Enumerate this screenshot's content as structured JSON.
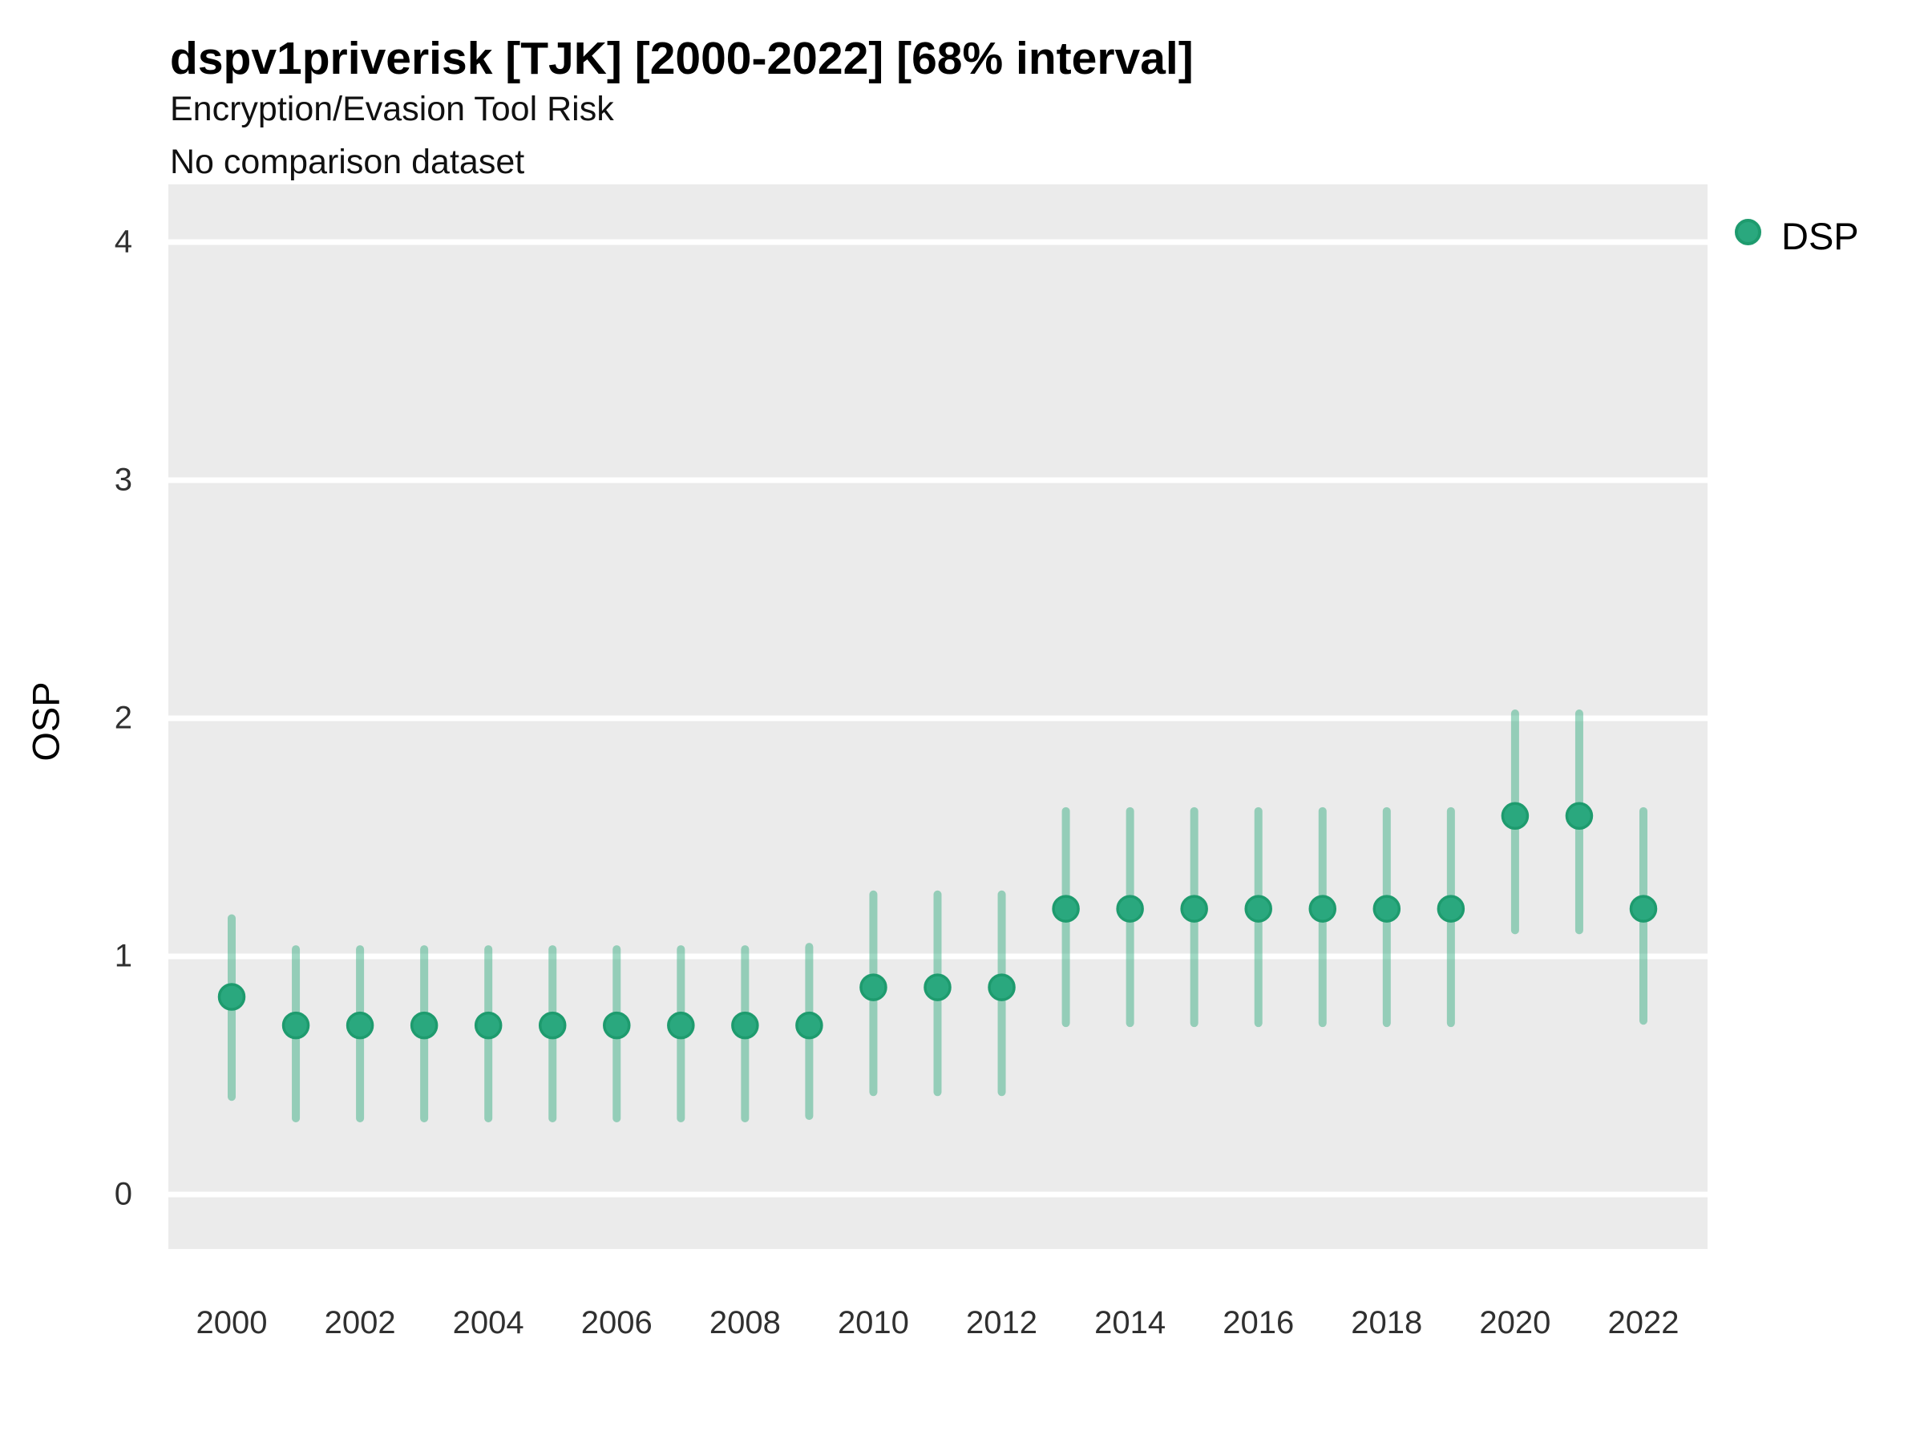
{
  "header": {
    "title": "dspv1priverisk [TJK] [2000-2022] [68% interval]",
    "subtitle": "Encryption/Evasion Tool Risk",
    "subtitle2": "No comparison dataset"
  },
  "legend": {
    "items": [
      {
        "label": "DSP",
        "fill": "#2aa87e",
        "stroke": "#1e9b6e"
      }
    ]
  },
  "colors": {
    "plot_background": "#ebebeb",
    "gridline": "#ffffff",
    "point_fill": "#2aa87e",
    "point_stroke": "#1e9b6e",
    "interval_bar": "rgba(42,168,122,0.45)",
    "tick_text": "#303030"
  },
  "chart_data": {
    "type": "scatter",
    "title": "dspv1priverisk [TJK] [2000-2022] [68% interval]",
    "subtitle": "Encryption/Evasion Tool Risk",
    "note": "No comparison dataset",
    "xlabel": "",
    "ylabel": "OSP",
    "ylim": [
      -0.23,
      4.24
    ],
    "y_ticks": [
      0,
      1,
      2,
      3,
      4
    ],
    "x_tick_labels": [
      "2000",
      "2002",
      "2004",
      "2006",
      "2008",
      "2010",
      "2012",
      "2014",
      "2016",
      "2018",
      "2020",
      "2022"
    ],
    "grid": "major-horizontal",
    "legend_position": "top-right",
    "interval_level": "68%",
    "series": [
      {
        "name": "DSP",
        "points": [
          {
            "year": 2000,
            "value": 0.83,
            "lo": 0.41,
            "hi": 1.16
          },
          {
            "year": 2001,
            "value": 0.71,
            "lo": 0.32,
            "hi": 1.03
          },
          {
            "year": 2002,
            "value": 0.71,
            "lo": 0.32,
            "hi": 1.03
          },
          {
            "year": 2003,
            "value": 0.71,
            "lo": 0.32,
            "hi": 1.03
          },
          {
            "year": 2004,
            "value": 0.71,
            "lo": 0.32,
            "hi": 1.03
          },
          {
            "year": 2005,
            "value": 0.71,
            "lo": 0.32,
            "hi": 1.03
          },
          {
            "year": 2006,
            "value": 0.71,
            "lo": 0.32,
            "hi": 1.03
          },
          {
            "year": 2007,
            "value": 0.71,
            "lo": 0.32,
            "hi": 1.03
          },
          {
            "year": 2008,
            "value": 0.71,
            "lo": 0.32,
            "hi": 1.03
          },
          {
            "year": 2009,
            "value": 0.71,
            "lo": 0.33,
            "hi": 1.04
          },
          {
            "year": 2010,
            "value": 0.87,
            "lo": 0.43,
            "hi": 1.26
          },
          {
            "year": 2011,
            "value": 0.87,
            "lo": 0.43,
            "hi": 1.26
          },
          {
            "year": 2012,
            "value": 0.87,
            "lo": 0.43,
            "hi": 1.26
          },
          {
            "year": 2013,
            "value": 1.2,
            "lo": 0.72,
            "hi": 1.61
          },
          {
            "year": 2014,
            "value": 1.2,
            "lo": 0.72,
            "hi": 1.61
          },
          {
            "year": 2015,
            "value": 1.2,
            "lo": 0.72,
            "hi": 1.61
          },
          {
            "year": 2016,
            "value": 1.2,
            "lo": 0.72,
            "hi": 1.61
          },
          {
            "year": 2017,
            "value": 1.2,
            "lo": 0.72,
            "hi": 1.61
          },
          {
            "year": 2018,
            "value": 1.2,
            "lo": 0.72,
            "hi": 1.61
          },
          {
            "year": 2019,
            "value": 1.2,
            "lo": 0.72,
            "hi": 1.61
          },
          {
            "year": 2020,
            "value": 1.59,
            "lo": 1.11,
            "hi": 2.02
          },
          {
            "year": 2021,
            "value": 1.59,
            "lo": 1.11,
            "hi": 2.02
          },
          {
            "year": 2022,
            "value": 1.2,
            "lo": 0.73,
            "hi": 1.61
          }
        ]
      }
    ]
  }
}
